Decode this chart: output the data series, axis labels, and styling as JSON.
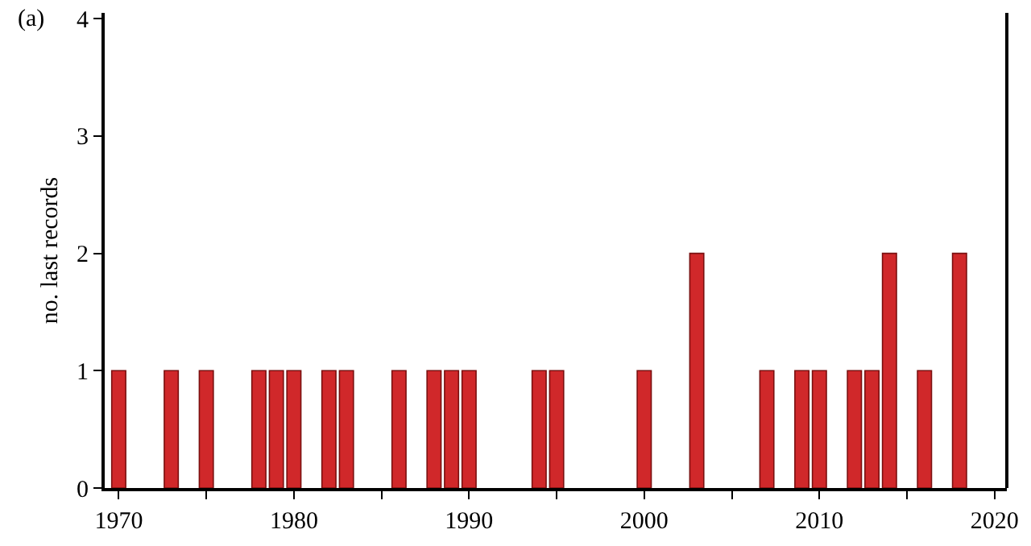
{
  "chart_data": {
    "type": "bar",
    "ylabel": "no. last records",
    "annotations": [
      "(a)"
    ],
    "color": "#d0282a",
    "x": [
      1970,
      1973,
      1975,
      1978,
      1979,
      1980,
      1982,
      1983,
      1986,
      1988,
      1989,
      1990,
      1994,
      1995,
      2000,
      2003,
      2007,
      2009,
      2010,
      2012,
      2013,
      2014,
      2016,
      2018
    ],
    "values": [
      1,
      1,
      1,
      1,
      1,
      1,
      1,
      1,
      1,
      1,
      1,
      1,
      1,
      1,
      1,
      2,
      1,
      1,
      1,
      1,
      1,
      2,
      1,
      2
    ],
    "xlim": [
      1969.2,
      2020.7
    ],
    "ylim": [
      0,
      4.05
    ],
    "xticks": [
      1970,
      {
        "value": 1975,
        "label": null
      },
      1980,
      {
        "value": 1985,
        "label": null
      },
      1990,
      {
        "value": 1995,
        "label": null
      },
      2000,
      {
        "value": 2005,
        "label": null
      },
      2010,
      {
        "value": 2015,
        "label": null
      },
      2020
    ],
    "yticks": [
      0,
      1,
      2,
      3,
      4
    ],
    "grid": false,
    "legend": false
  }
}
